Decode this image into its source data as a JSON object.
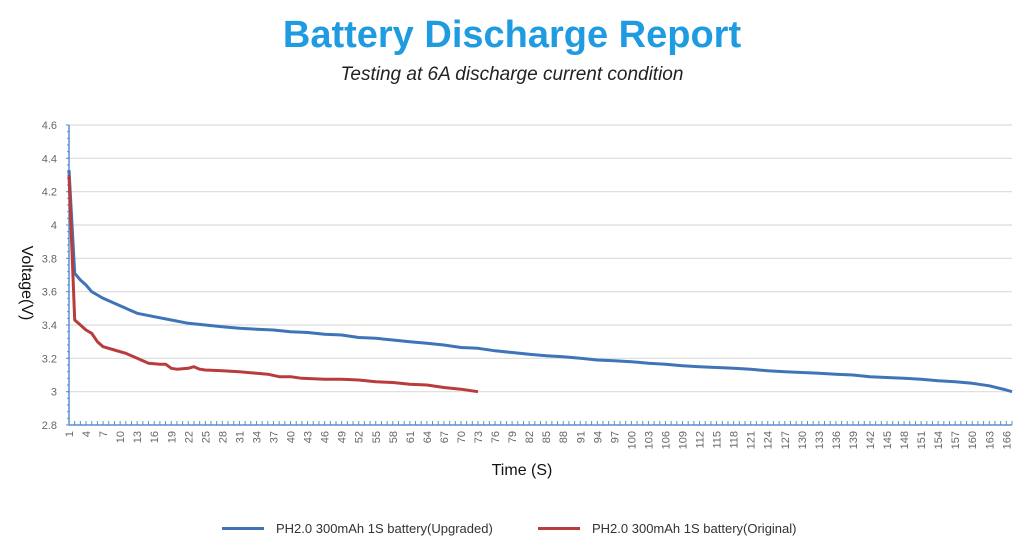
{
  "title": "Battery Discharge Report",
  "subtitle": "Testing at 6A discharge current condition",
  "chart_data": {
    "type": "line",
    "xlabel": "Time (S)",
    "ylabel": "Voltage(V)",
    "xlim": [
      1,
      167
    ],
    "ylim": [
      2.8,
      4.6
    ],
    "yticks": [
      "2.8",
      "3",
      "3.2",
      "3.4",
      "3.6",
      "3.8",
      "4",
      "4.2",
      "4.4",
      "4.6"
    ],
    "xticks": [
      "1",
      "4",
      "7",
      "10",
      "13",
      "16",
      "19",
      "22",
      "25",
      "28",
      "31",
      "34",
      "37",
      "40",
      "43",
      "46",
      "49",
      "52",
      "55",
      "58",
      "61",
      "64",
      "67",
      "70",
      "73",
      "76",
      "79",
      "82",
      "85",
      "88",
      "91",
      "94",
      "97",
      "100",
      "103",
      "106",
      "109",
      "112",
      "115",
      "118",
      "121",
      "124",
      "127",
      "130",
      "133",
      "136",
      "139",
      "142",
      "145",
      "148",
      "151",
      "154",
      "157",
      "160",
      "163",
      "166"
    ],
    "grid": "horizontal",
    "legend_position": "bottom",
    "series": [
      {
        "name": "PH2.0 300mAh 1S battery(Upgraded)",
        "color": "#3f74b8",
        "x": [
          1,
          2,
          3,
          4,
          5,
          6,
          7,
          9,
          11,
          13,
          16,
          19,
          22,
          25,
          28,
          31,
          34,
          37,
          40,
          43,
          46,
          49,
          52,
          55,
          58,
          61,
          64,
          67,
          70,
          73,
          76,
          79,
          82,
          85,
          88,
          91,
          94,
          97,
          100,
          103,
          106,
          109,
          112,
          115,
          118,
          121,
          124,
          127,
          130,
          133,
          136,
          139,
          142,
          145,
          148,
          151,
          154,
          157,
          160,
          163,
          166,
          167
        ],
        "y": [
          4.33,
          3.71,
          3.67,
          3.64,
          3.6,
          3.58,
          3.56,
          3.53,
          3.5,
          3.47,
          3.45,
          3.43,
          3.41,
          3.4,
          3.39,
          3.38,
          3.375,
          3.37,
          3.36,
          3.355,
          3.345,
          3.34,
          3.325,
          3.32,
          3.31,
          3.3,
          3.29,
          3.28,
          3.265,
          3.26,
          3.245,
          3.235,
          3.225,
          3.215,
          3.21,
          3.2,
          3.19,
          3.185,
          3.18,
          3.17,
          3.165,
          3.155,
          3.15,
          3.145,
          3.14,
          3.135,
          3.125,
          3.12,
          3.115,
          3.11,
          3.105,
          3.1,
          3.09,
          3.085,
          3.08,
          3.075,
          3.065,
          3.06,
          3.05,
          3.035,
          3.01,
          3.0
        ]
      },
      {
        "name": "PH2.0 300mAh 1S battery(Original)",
        "color": "#b83c3c",
        "x": [
          1,
          2,
          3,
          4,
          5,
          6,
          7,
          9,
          11,
          13,
          15,
          17,
          18,
          19,
          20,
          22,
          23,
          24,
          25,
          28,
          31,
          34,
          36,
          38,
          40,
          42,
          46,
          49,
          52,
          55,
          58,
          61,
          64,
          67,
          70,
          73
        ],
        "y": [
          4.3,
          3.43,
          3.4,
          3.37,
          3.35,
          3.3,
          3.27,
          3.25,
          3.23,
          3.2,
          3.17,
          3.165,
          3.165,
          3.14,
          3.135,
          3.14,
          3.15,
          3.135,
          3.13,
          3.125,
          3.12,
          3.11,
          3.105,
          3.09,
          3.09,
          3.08,
          3.075,
          3.075,
          3.07,
          3.06,
          3.055,
          3.045,
          3.04,
          3.025,
          3.015,
          3.0
        ]
      }
    ]
  }
}
